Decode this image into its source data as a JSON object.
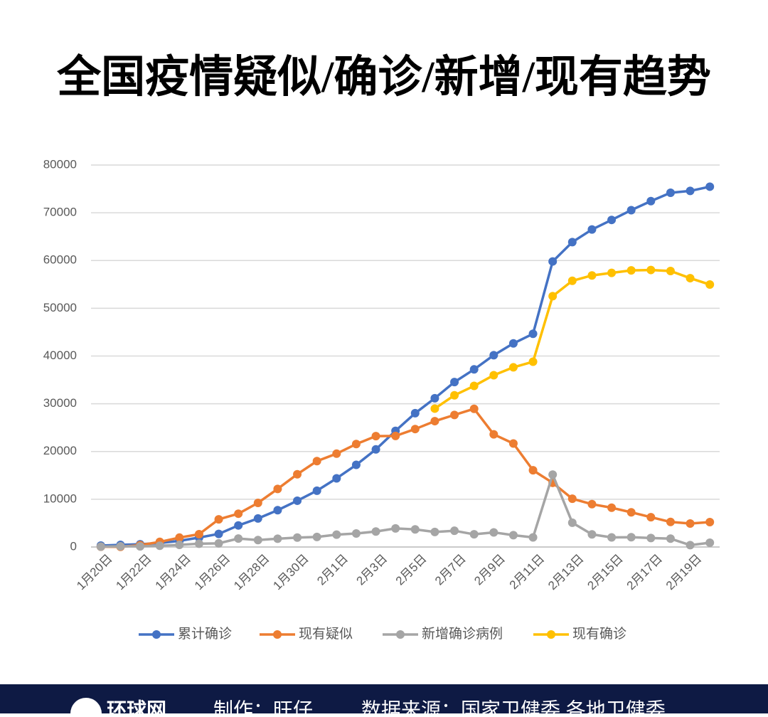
{
  "chart_data": {
    "type": "line",
    "title": "全国疫情疑似/确诊/新增/现有趋势",
    "categories": [
      "1月20日",
      null,
      "1月22日",
      null,
      "1月24日",
      null,
      "1月26日",
      null,
      "1月28日",
      null,
      "1月30日",
      null,
      "2月1日",
      null,
      "2月3日",
      null,
      "2月5日",
      null,
      "2月7日",
      null,
      "2月9日",
      null,
      "2月11日",
      null,
      "2月13日",
      null,
      "2月15日",
      null,
      "2月17日",
      null,
      "2月19日",
      null
    ],
    "series": [
      {
        "name": "累计确诊",
        "color": "#4472c4",
        "values": [
          291,
          440,
          571,
          830,
          1287,
          1975,
          2744,
          4515,
          5974,
          7711,
          9692,
          11791,
          14380,
          17205,
          20438,
          24324,
          28018,
          31161,
          34546,
          37198,
          40171,
          42638,
          44653,
          59804,
          63851,
          66492,
          68500,
          70548,
          72436,
          74185,
          74576,
          75465
        ]
      },
      {
        "name": "现有疑似",
        "color": "#ed7d31",
        "values": [
          54,
          37,
          393,
          1072,
          1965,
          2684,
          5794,
          6973,
          9239,
          12167,
          15238,
          17988,
          19544,
          21558,
          23214,
          23260,
          24702,
          26359,
          27657,
          28942,
          23589,
          21675,
          16067,
          13435,
          10109,
          8969,
          8228,
          7264,
          6242,
          5248,
          4922,
          5206
        ]
      },
      {
        "name": "新增确诊病例",
        "color": "#a5a5a5",
        "values": [
          77,
          149,
          131,
          259,
          444,
          688,
          769,
          1771,
          1459,
          1737,
          1982,
          2102,
          2590,
          2829,
          3235,
          3887,
          3694,
          3143,
          3399,
          2656,
          3062,
          2478,
          2015,
          15152,
          5090,
          2641,
          2009,
          2048,
          1886,
          1749,
          394,
          889
        ]
      },
      {
        "name": "现有确诊",
        "color": "#ffc000",
        "values": [
          null,
          null,
          null,
          null,
          null,
          null,
          null,
          null,
          null,
          null,
          null,
          null,
          null,
          null,
          null,
          null,
          null,
          28985,
          31774,
          33738,
          35982,
          37626,
          38800,
          52526,
          55748,
          56873,
          57416,
          57934,
          58016,
          57805,
          56303,
          54965
        ]
      }
    ],
    "ylim": [
      0,
      80000
    ],
    "yticks": [
      0,
      10000,
      20000,
      30000,
      40000,
      50000,
      60000,
      70000,
      80000
    ],
    "grid": true,
    "legend": "bottom"
  },
  "footer": {
    "logo": "环球网",
    "credit": "制作：旺仔",
    "source": "数据来源：国家卫健委 各地卫健委"
  }
}
